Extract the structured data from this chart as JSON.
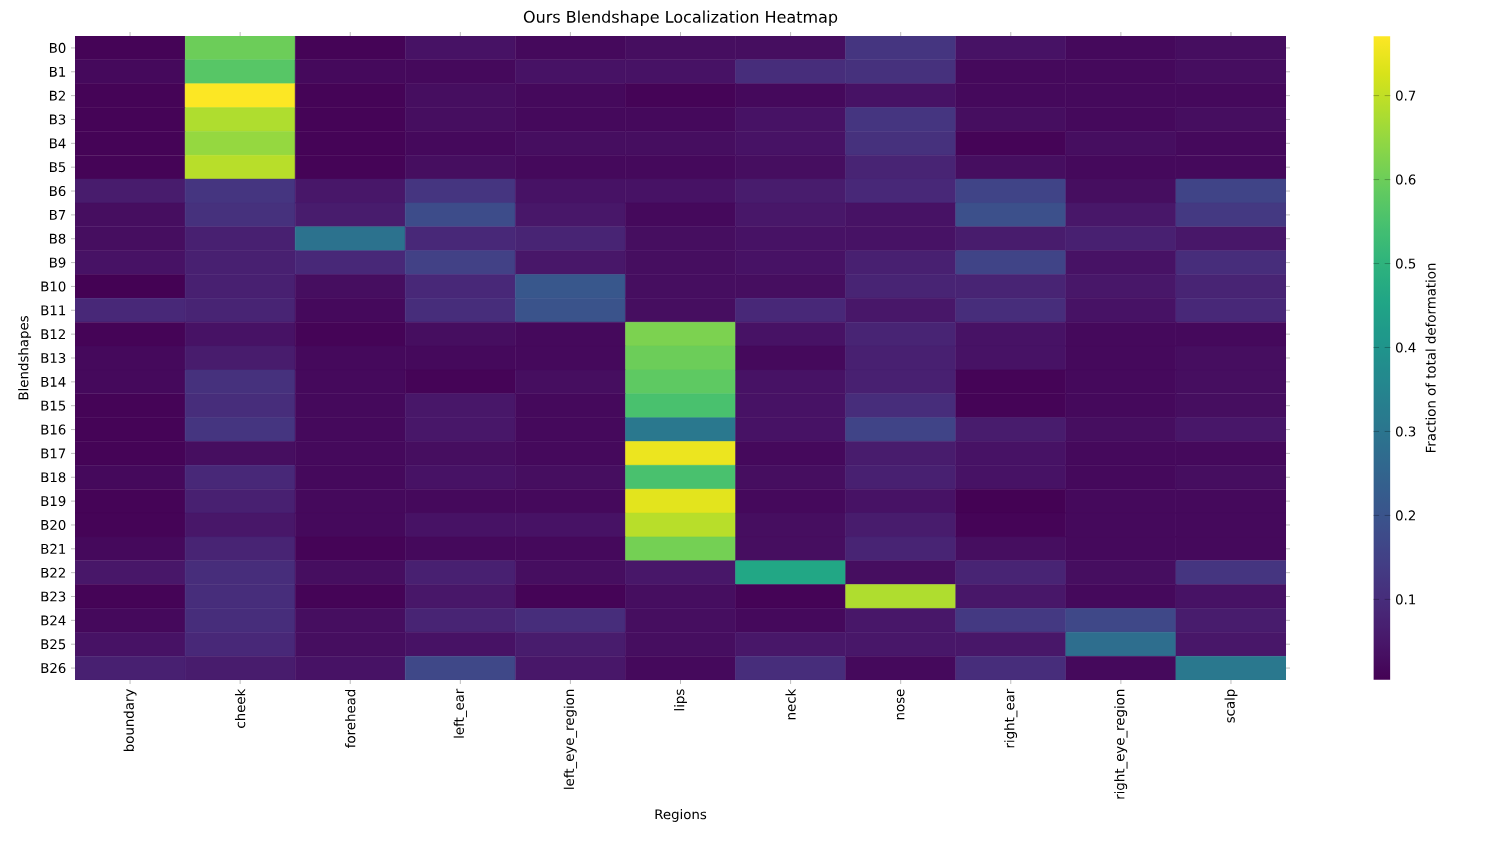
{
  "chart_data": {
    "type": "heatmap",
    "title": "Ours Blendshape Localization Heatmap",
    "xlabel": "Regions",
    "ylabel": "Blendshapes",
    "clabel": "Fraction of total deformation",
    "categories": [
      "boundary",
      "cheek",
      "forehead",
      "left_ear",
      "left_eye_region",
      "lips",
      "neck",
      "nose",
      "right_ear",
      "right_eye_region",
      "scalp"
    ],
    "y_categories": [
      "B0",
      "B1",
      "B2",
      "B3",
      "B4",
      "B5",
      "B6",
      "B7",
      "B8",
      "B9",
      "B10",
      "B11",
      "B12",
      "B13",
      "B14",
      "B15",
      "B16",
      "B17",
      "B18",
      "B19",
      "B20",
      "B21",
      "B22",
      "B23",
      "B24",
      "B25",
      "B26"
    ],
    "cells": [
      [
        0.01,
        0.6,
        0.01,
        0.04,
        0.02,
        0.03,
        0.03,
        0.12,
        0.04,
        0.02,
        0.03
      ],
      [
        0.02,
        0.57,
        0.02,
        0.02,
        0.04,
        0.04,
        0.1,
        0.11,
        0.02,
        0.02,
        0.03
      ],
      [
        0.01,
        0.77,
        0.01,
        0.03,
        0.02,
        0.01,
        0.02,
        0.04,
        0.02,
        0.02,
        0.02
      ],
      [
        0.01,
        0.68,
        0.01,
        0.03,
        0.02,
        0.02,
        0.04,
        0.12,
        0.03,
        0.02,
        0.03
      ],
      [
        0.01,
        0.65,
        0.01,
        0.02,
        0.03,
        0.03,
        0.04,
        0.11,
        0.01,
        0.03,
        0.02
      ],
      [
        0.01,
        0.69,
        0.01,
        0.03,
        0.02,
        0.02,
        0.03,
        0.08,
        0.03,
        0.02,
        0.02
      ],
      [
        0.06,
        0.12,
        0.05,
        0.12,
        0.04,
        0.04,
        0.06,
        0.09,
        0.16,
        0.03,
        0.16
      ],
      [
        0.03,
        0.11,
        0.06,
        0.18,
        0.05,
        0.02,
        0.05,
        0.04,
        0.19,
        0.05,
        0.13
      ],
      [
        0.03,
        0.07,
        0.29,
        0.09,
        0.08,
        0.03,
        0.04,
        0.04,
        0.06,
        0.07,
        0.05
      ],
      [
        0.04,
        0.07,
        0.09,
        0.15,
        0.05,
        0.03,
        0.04,
        0.07,
        0.16,
        0.04,
        0.1
      ],
      [
        0.005,
        0.07,
        0.03,
        0.09,
        0.21,
        0.03,
        0.03,
        0.08,
        0.08,
        0.05,
        0.08
      ],
      [
        0.09,
        0.08,
        0.02,
        0.1,
        0.2,
        0.03,
        0.09,
        0.05,
        0.1,
        0.04,
        0.09
      ],
      [
        0.01,
        0.04,
        0.01,
        0.03,
        0.02,
        0.62,
        0.04,
        0.08,
        0.04,
        0.02,
        0.02
      ],
      [
        0.02,
        0.06,
        0.02,
        0.02,
        0.02,
        0.6,
        0.02,
        0.07,
        0.04,
        0.02,
        0.03
      ],
      [
        0.02,
        0.11,
        0.02,
        0.01,
        0.03,
        0.58,
        0.04,
        0.07,
        0.01,
        0.02,
        0.03
      ],
      [
        0.01,
        0.1,
        0.02,
        0.05,
        0.02,
        0.55,
        0.04,
        0.1,
        0.01,
        0.02,
        0.03
      ],
      [
        0.01,
        0.12,
        0.02,
        0.05,
        0.02,
        0.31,
        0.04,
        0.16,
        0.06,
        0.03,
        0.05
      ],
      [
        0.01,
        0.03,
        0.02,
        0.03,
        0.02,
        0.75,
        0.02,
        0.06,
        0.04,
        0.02,
        0.02
      ],
      [
        0.02,
        0.09,
        0.02,
        0.04,
        0.03,
        0.55,
        0.03,
        0.07,
        0.04,
        0.02,
        0.03
      ],
      [
        0.01,
        0.07,
        0.02,
        0.02,
        0.02,
        0.74,
        0.02,
        0.04,
        0.005,
        0.02,
        0.02
      ],
      [
        0.01,
        0.05,
        0.02,
        0.04,
        0.04,
        0.69,
        0.03,
        0.06,
        0.01,
        0.02,
        0.02
      ],
      [
        0.02,
        0.08,
        0.01,
        0.02,
        0.02,
        0.61,
        0.03,
        0.08,
        0.03,
        0.02,
        0.02
      ],
      [
        0.05,
        0.1,
        0.03,
        0.07,
        0.03,
        0.05,
        0.46,
        0.03,
        0.08,
        0.03,
        0.12
      ],
      [
        0.01,
        0.1,
        0.01,
        0.05,
        0.01,
        0.03,
        0.01,
        0.68,
        0.05,
        0.02,
        0.04
      ],
      [
        0.02,
        0.1,
        0.03,
        0.08,
        0.1,
        0.03,
        0.02,
        0.05,
        0.13,
        0.17,
        0.06
      ],
      [
        0.04,
        0.09,
        0.03,
        0.04,
        0.06,
        0.03,
        0.05,
        0.05,
        0.05,
        0.28,
        0.05
      ],
      [
        0.07,
        0.06,
        0.04,
        0.17,
        0.05,
        0.02,
        0.1,
        0.02,
        0.1,
        0.02,
        0.31
      ]
    ],
    "clim": [
      0.004,
      0.771
    ],
    "cticks": [
      0.1,
      0.2,
      0.3,
      0.4,
      0.5,
      0.6,
      0.7
    ]
  }
}
